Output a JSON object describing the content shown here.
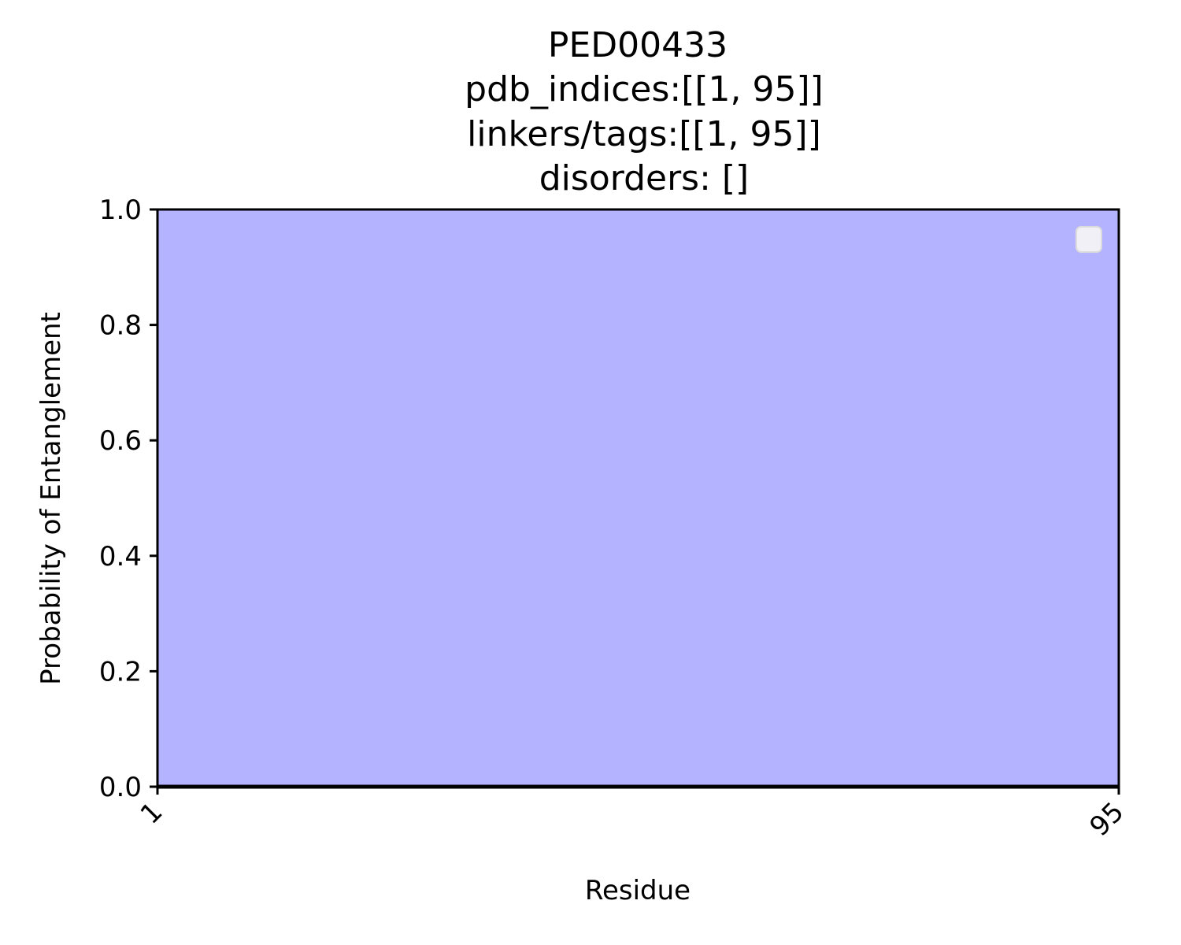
{
  "chart_data": {
    "type": "area",
    "title_lines": [
      "PED00433",
      "pdb_indices:[[1, 95]]",
      "linkers/tags:[[1, 95]]",
      "disorders: []"
    ],
    "xlabel": "Residue",
    "ylabel": "Probability of Entanglement",
    "xlim": [
      1,
      95
    ],
    "ylim": [
      0,
      1
    ],
    "x_ticks": [
      1,
      95
    ],
    "x_tick_labels": [
      "1",
      "95"
    ],
    "y_ticks": [
      0.0,
      0.2,
      0.4,
      0.6,
      0.8,
      1.0
    ],
    "y_tick_labels": [
      "0.0",
      "0.2",
      "0.4",
      "0.6",
      "0.8",
      "1.0"
    ],
    "shaded_regions": [
      {
        "x_start": 1,
        "x_end": 95,
        "color": "#b3b3ff"
      }
    ],
    "series": [
      {
        "x": [
          1,
          95
        ],
        "values": [
          0,
          0
        ],
        "color": "#000000"
      }
    ],
    "legend": {
      "placement": "top-right",
      "entries": []
    },
    "grid": false
  }
}
